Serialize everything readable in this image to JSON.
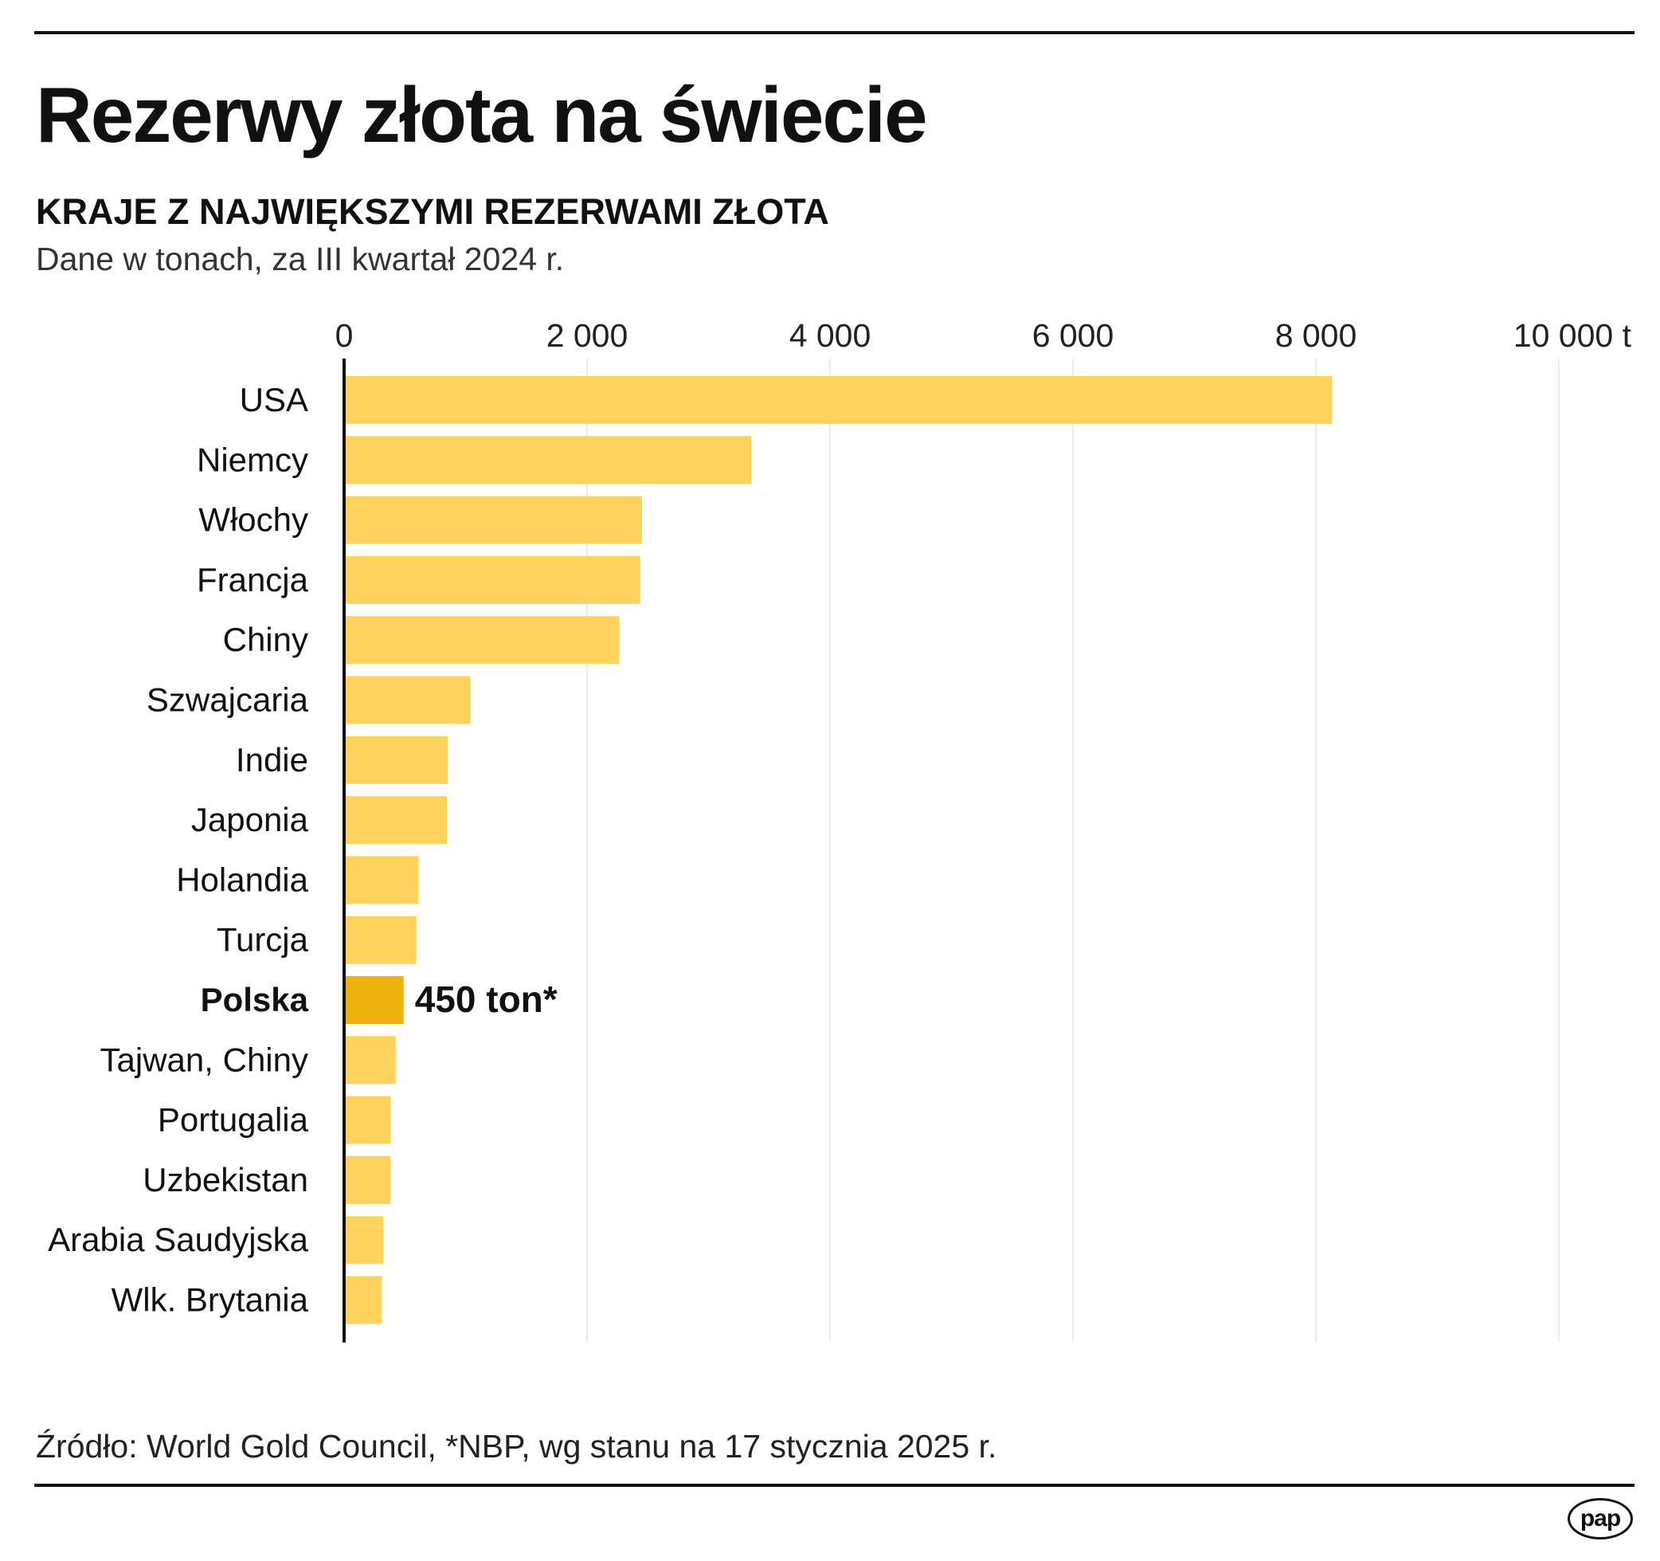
{
  "chart_data": {
    "type": "bar",
    "orientation": "horizontal",
    "title": "Rezerwy złota na świecie",
    "subtitle": "KRAJE Z NAJWIĘKSZYMI REZERWAMI ZŁOTA",
    "note": "Dane w tonach, za III kwartał 2024 r.",
    "xlabel": "",
    "ylabel": "",
    "xlim": [
      0,
      10000
    ],
    "ticks": [
      0,
      2000,
      4000,
      6000,
      8000,
      10000
    ],
    "tick_labels": [
      "0",
      "2 000",
      "4 000",
      "6 000",
      "8 000",
      "10 000 t"
    ],
    "grid": true,
    "categories": [
      "USA",
      "Niemcy",
      "Włochy",
      "Francja",
      "Chiny",
      "Szwajcaria",
      "Indie",
      "Japonia",
      "Holandia",
      "Turcja",
      "Polska",
      "Tajwan, Chiny",
      "Portugalia",
      "Uzbekistan",
      "Arabia Saudyjska",
      "Wlk. Brytania"
    ],
    "values": [
      8133,
      3352,
      2452,
      2437,
      2264,
      1040,
      854,
      846,
      612,
      595,
      490,
      424,
      383,
      383,
      323,
      310
    ],
    "highlight": {
      "category": "Polska",
      "label": "450 ton*"
    },
    "colors": {
      "bar": "#fdd35e",
      "highlight": "#efb10e",
      "axis": "#111111",
      "grid": "#e8eceb"
    }
  },
  "source": "Źródło: World Gold Council, *NBP, wg stanu na 17 stycznia 2025 r.",
  "logo": "pap"
}
